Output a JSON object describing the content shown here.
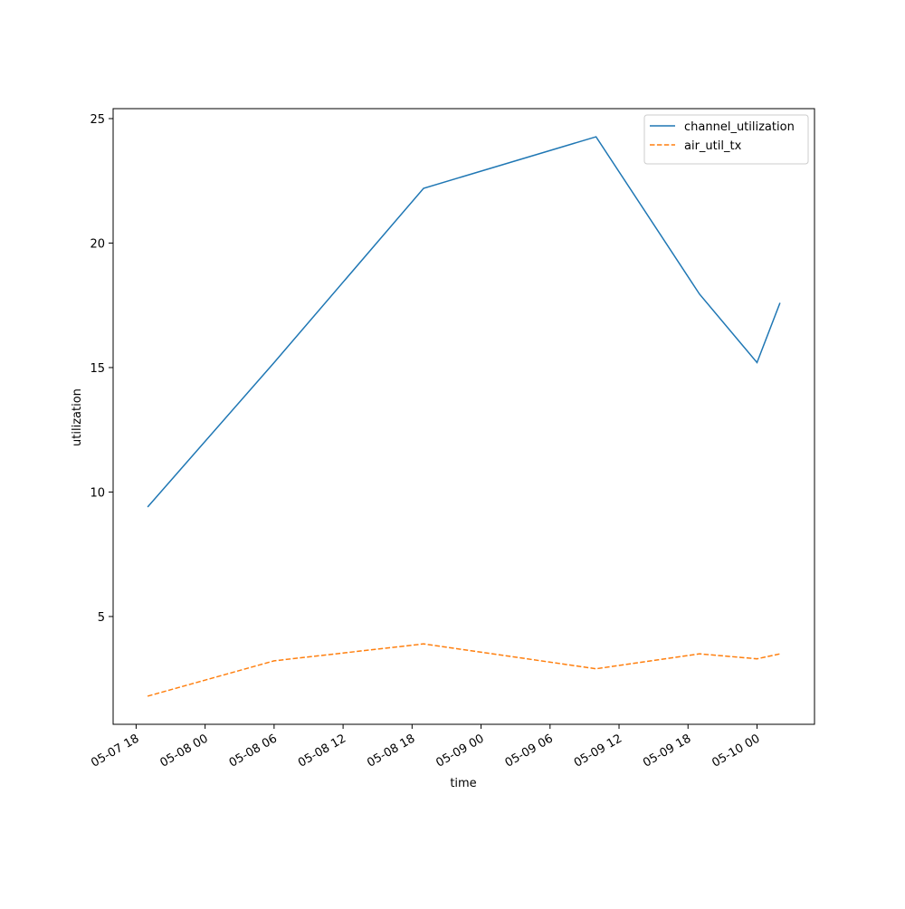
{
  "chart_data": {
    "type": "line",
    "xlabel": "time",
    "ylabel": "utilization",
    "x": [
      "05-07 19",
      "05-08 06",
      "05-08 19",
      "05-09 10",
      "05-09 19",
      "05-10 00",
      "05-10 02"
    ],
    "series": [
      {
        "name": "channel_utilization",
        "color": "#1f77b4",
        "linestyle": "solid",
        "values": [
          9.4,
          15.2,
          22.2,
          24.27,
          17.95,
          15.2,
          17.6
        ]
      },
      {
        "name": "air_util_tx",
        "color": "#ff7f0e",
        "linestyle": "dashed",
        "values": [
          1.8,
          3.22,
          3.9,
          2.9,
          3.5,
          3.3,
          3.5
        ]
      }
    ],
    "xlim": [
      "05-07 16",
      "05-10 05"
    ],
    "xticks": [
      "05-07 18",
      "05-08 00",
      "05-08 06",
      "05-08 12",
      "05-08 18",
      "05-09 00",
      "05-09 06",
      "05-09 12",
      "05-09 18",
      "05-10 00"
    ],
    "ylim": [
      0.67,
      25.4
    ],
    "yticks": [
      5,
      10,
      15,
      20,
      25
    ],
    "grid": false,
    "legend": "upper-right"
  }
}
